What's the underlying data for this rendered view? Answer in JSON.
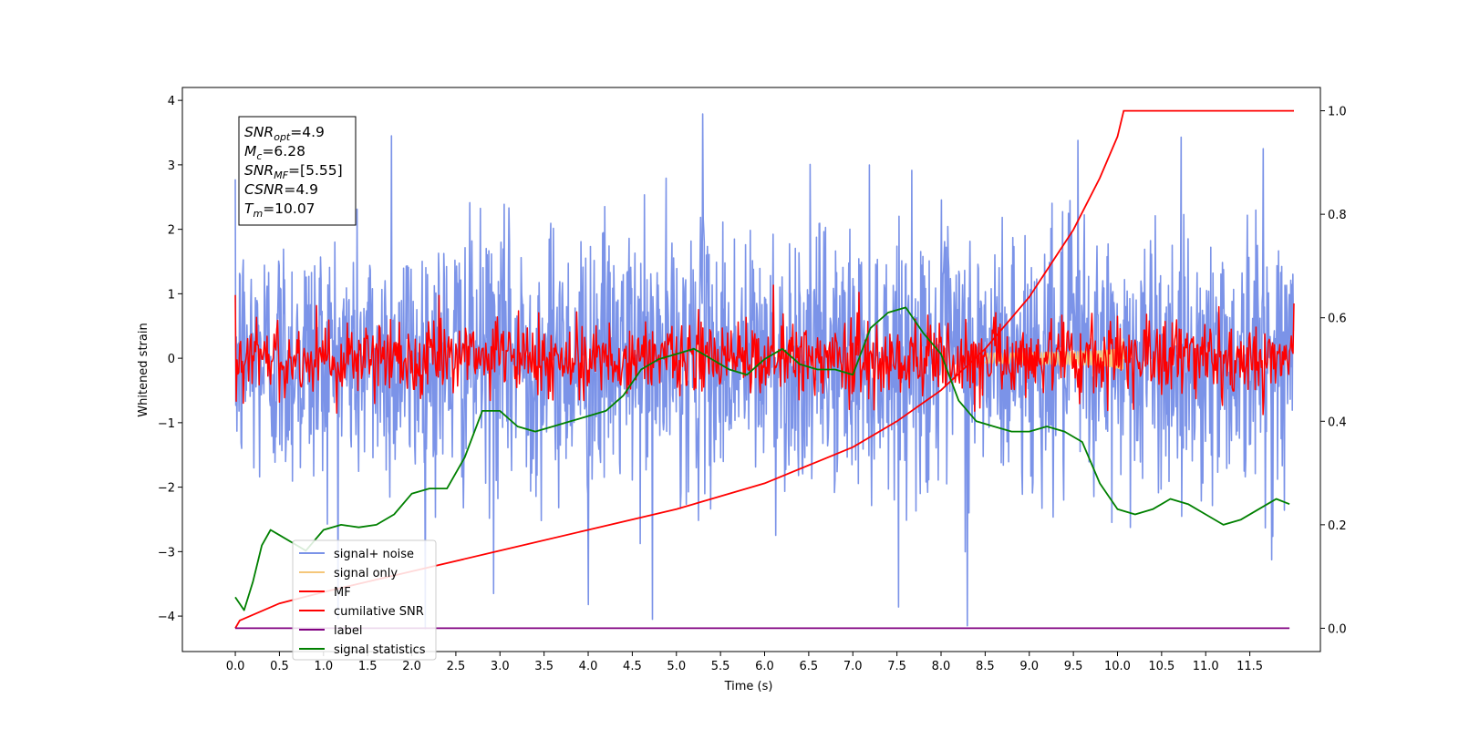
{
  "chart_data": {
    "type": "line",
    "xlabel": "Time (s)",
    "ylabel": "Whitened strain",
    "xlim": [
      -0.6,
      12.3
    ],
    "ylim": [
      -4.55,
      4.2
    ],
    "y2lim": [
      -0.045,
      1.045
    ],
    "x_ticks": [
      "0.0",
      "0.5",
      "1.0",
      "1.5",
      "2.0",
      "2.5",
      "3.0",
      "3.5",
      "4.0",
      "4.5",
      "5.0",
      "5.5",
      "6.0",
      "6.5",
      "7.0",
      "7.5",
      "8.0",
      "8.5",
      "9.0",
      "9.5",
      "10.0",
      "10.5",
      "11.0",
      "11.5"
    ],
    "y_ticks": [
      "4",
      "3",
      "2",
      "1",
      "0",
      "−1",
      "−2",
      "−3",
      "−4"
    ],
    "y2_ticks": [
      "1.0",
      "0.8",
      "0.6",
      "0.4",
      "0.2",
      "0.0"
    ],
    "annotation": {
      "lines": [
        {
          "main": "SNR",
          "sub": "opt",
          "value": "=4.9"
        },
        {
          "main": "M",
          "sub": "c",
          "value": "=6.28"
        },
        {
          "main": "SNR",
          "sub": "MF",
          "value": "=[5.55]"
        },
        {
          "main": "CSNR",
          "sub": "",
          "value": "=4.9"
        },
        {
          "main": "T",
          "sub": "m",
          "value": "=10.07"
        }
      ]
    },
    "legend": {
      "placement": "lower-left",
      "entries": [
        {
          "label": "signal+ noise",
          "color": "#7b93e8"
        },
        {
          "label": "signal only",
          "color": "#f5c77a"
        },
        {
          "label": "MF",
          "color": "#ff0000"
        },
        {
          "label": "cumilative SNR",
          "color": "#ff0000"
        },
        {
          "label": "label",
          "color": "#800080"
        },
        {
          "label": "signal statistics",
          "color": "#008000"
        }
      ]
    },
    "series": [
      {
        "name": "signal+ noise",
        "axis": "left",
        "color": "#7b93e8",
        "description_stats": {
          "t_start": 0.0,
          "t_end": 12.0,
          "center": 0.0,
          "typical_amplitude": 1.0,
          "peaks": [
            {
              "x": 5.3,
              "y": 3.79
            },
            {
              "x": 1.77,
              "y": 3.45
            },
            {
              "x": 9.55,
              "y": 3.38
            },
            {
              "x": 11.65,
              "y": 3.25
            },
            {
              "x": 8.3,
              "y": -4.15
            },
            {
              "x": 4.73,
              "y": -4.05
            },
            {
              "x": 2.93,
              "y": -3.65
            },
            {
              "x": 4.0,
              "y": -3.82
            }
          ]
        }
      },
      {
        "name": "signal only",
        "axis": "left",
        "color": "#f5c77a",
        "chirp": {
          "t_start": 8.5,
          "t_merger": 10.07,
          "peak_amplitude": 0.55
        }
      },
      {
        "name": "MF",
        "axis": "left",
        "color": "#ff0000",
        "description_stats": {
          "t_start": 0.0,
          "t_end": 12.0,
          "center": 0.0,
          "typical_amplitude": 0.3,
          "peaks": [
            {
              "x": 0.0,
              "y": 0.98
            },
            {
              "x": 12.0,
              "y": 0.85
            },
            {
              "x": 10.0,
              "y": 0.65
            }
          ]
        }
      },
      {
        "name": "cumilative SNR",
        "axis": "right",
        "color": "#ff0000",
        "x": [
          0.0,
          0.05,
          0.5,
          1.0,
          2.0,
          3.0,
          4.0,
          5.0,
          6.0,
          7.0,
          7.5,
          8.0,
          8.5,
          9.0,
          9.5,
          9.8,
          10.0,
          10.07,
          12.0
        ],
        "y": [
          0.0,
          0.015,
          0.048,
          0.07,
          0.11,
          0.15,
          0.19,
          0.23,
          0.28,
          0.35,
          0.4,
          0.46,
          0.54,
          0.64,
          0.77,
          0.87,
          0.95,
          1.0,
          1.0
        ]
      },
      {
        "name": "label",
        "axis": "right",
        "color": "#800080",
        "x": [
          0.0,
          11.95
        ],
        "y": [
          0.0,
          0.0
        ]
      },
      {
        "name": "signal statistics",
        "axis": "right",
        "color": "#008000",
        "x": [
          0.0,
          0.1,
          0.2,
          0.3,
          0.4,
          0.5,
          0.7,
          0.8,
          1.0,
          1.2,
          1.4,
          1.6,
          1.8,
          2.0,
          2.2,
          2.4,
          2.6,
          2.8,
          3.0,
          3.2,
          3.4,
          3.6,
          3.8,
          4.0,
          4.2,
          4.4,
          4.6,
          4.8,
          5.0,
          5.2,
          5.4,
          5.6,
          5.8,
          6.0,
          6.2,
          6.4,
          6.6,
          6.8,
          7.0,
          7.2,
          7.4,
          7.6,
          7.8,
          8.0,
          8.2,
          8.4,
          8.6,
          8.8,
          9.0,
          9.2,
          9.4,
          9.6,
          9.8,
          10.0,
          10.2,
          10.4,
          10.6,
          10.8,
          11.0,
          11.2,
          11.4,
          11.6,
          11.8,
          11.95
        ],
        "y": [
          0.06,
          0.035,
          0.09,
          0.16,
          0.19,
          0.18,
          0.16,
          0.15,
          0.19,
          0.2,
          0.195,
          0.2,
          0.22,
          0.26,
          0.27,
          0.27,
          0.33,
          0.42,
          0.42,
          0.39,
          0.38,
          0.39,
          0.4,
          0.41,
          0.42,
          0.45,
          0.5,
          0.52,
          0.53,
          0.54,
          0.52,
          0.5,
          0.49,
          0.52,
          0.54,
          0.51,
          0.5,
          0.5,
          0.49,
          0.58,
          0.61,
          0.62,
          0.57,
          0.53,
          0.44,
          0.4,
          0.39,
          0.38,
          0.38,
          0.39,
          0.38,
          0.36,
          0.28,
          0.23,
          0.22,
          0.23,
          0.25,
          0.24,
          0.22,
          0.2,
          0.21,
          0.23,
          0.25,
          0.24
        ]
      }
    ]
  }
}
